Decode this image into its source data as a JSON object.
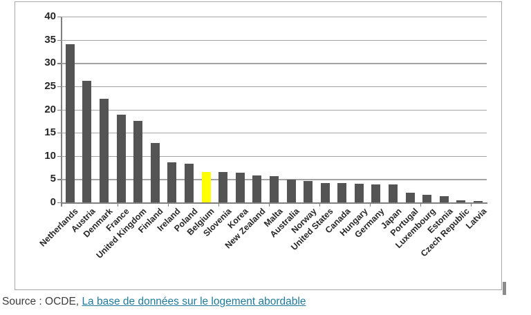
{
  "chart_data": {
    "type": "bar",
    "title": "",
    "xlabel": "",
    "ylabel": "",
    "categories": [
      "Netherlands",
      "Austria",
      "Denmark",
      "France",
      "United Kingdom",
      "Finland",
      "Ireland",
      "Poland",
      "Belgium",
      "Slovenia",
      "Korea",
      "New Zealand",
      "Malta",
      "Australia",
      "Norway",
      "United States",
      "Canada",
      "Hungary",
      "Germany",
      "Japan",
      "Portugal",
      "Luxembourg",
      "Estonia",
      "Czech Republic",
      "Latvia"
    ],
    "values": [
      34.1,
      26.2,
      22.3,
      18.9,
      17.6,
      12.8,
      8.6,
      8.4,
      6.6,
      6.5,
      6.4,
      5.8,
      5.6,
      4.9,
      4.6,
      4.2,
      4.1,
      4.0,
      3.9,
      3.8,
      2.1,
      1.6,
      1.4,
      0.5,
      0.3
    ],
    "highlight_category": "Belgium",
    "highlight_index": 8,
    "ylim": [
      0,
      40
    ],
    "yticks": [
      0,
      5,
      10,
      15,
      20,
      25,
      30,
      35,
      40
    ],
    "grid": true,
    "legend_position": "none",
    "bar_color": "#545454",
    "highlight_color": "#ffff00",
    "gridline_color": "#a3a3a3",
    "axis_color": "#7f7f7f",
    "label_color": "#262626"
  },
  "source": {
    "prefix": "Source : OCDE, ",
    "link_text": "La base de données sur le logement abordable",
    "link_color": "#1f7a9b"
  }
}
